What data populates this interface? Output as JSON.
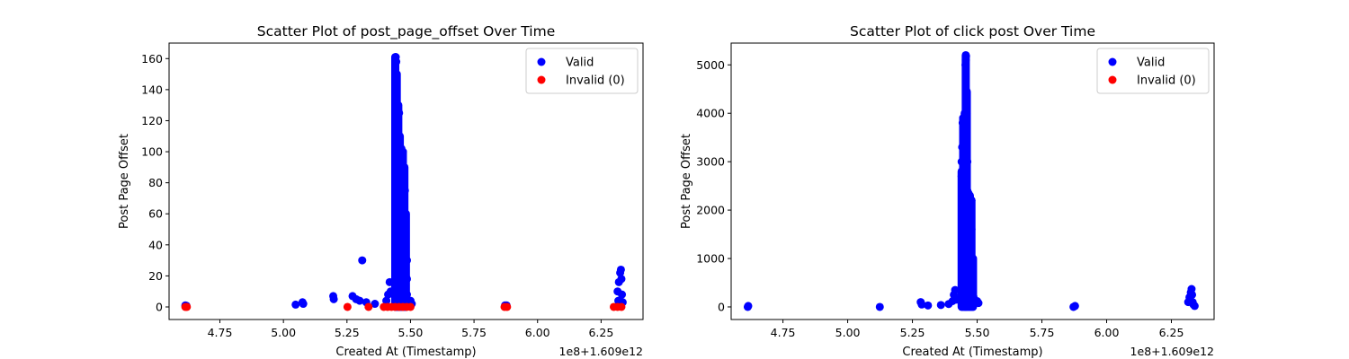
{
  "colors": {
    "valid": "#0000ff",
    "invalid": "#ff0000"
  },
  "chart_data": [
    {
      "type": "scatter",
      "title": "Scatter Plot of post_page_offset Over Time",
      "xlabel": "Created At (Timestamp)",
      "ylabel": "Post Page Offset",
      "x_offset_text": "1e8+1.609e12",
      "xlim": [
        4.55,
        6.415
      ],
      "ylim": [
        -8.1,
        170
      ],
      "xticks": [
        4.75,
        5.0,
        5.25,
        5.5,
        5.75,
        6.0,
        6.25
      ],
      "xtick_labels": [
        "4.75",
        "5.00",
        "5.25",
        "5.50",
        "5.75",
        "6.00",
        "6.25"
      ],
      "yticks": [
        0,
        20,
        40,
        60,
        80,
        100,
        120,
        140,
        160
      ],
      "ytick_labels": [
        "0",
        "20",
        "40",
        "60",
        "80",
        "100",
        "120",
        "140",
        "160"
      ],
      "legend_position": "top-right",
      "grid": false,
      "series": [
        {
          "name": "Valid",
          "color": "#0000ff",
          "points": [
            [
              4.614,
              1
            ],
            [
              4.616,
              0.5
            ],
            [
              4.618,
              0.8
            ],
            [
              5.048,
              1.5
            ],
            [
              5.075,
              3
            ],
            [
              5.078,
              2
            ],
            [
              5.196,
              7
            ],
            [
              5.198,
              5
            ],
            [
              5.272,
              7
            ],
            [
              5.286,
              5
            ],
            [
              5.3,
              4
            ],
            [
              5.31,
              30
            ],
            [
              5.326,
              3
            ],
            [
              5.36,
              2
            ],
            [
              5.405,
              4
            ],
            [
              5.412,
              8
            ],
            [
              5.418,
              16
            ],
            [
              5.422,
              10
            ],
            [
              5.44,
              160
            ],
            [
              5.442,
              161
            ],
            [
              5.444,
              158
            ],
            [
              5.442,
              150
            ],
            [
              5.442,
              140
            ],
            [
              5.442,
              130
            ],
            [
              5.442,
              120
            ],
            [
              5.442,
              110
            ],
            [
              5.442,
              100
            ],
            [
              5.442,
              90
            ],
            [
              5.442,
              80
            ],
            [
              5.442,
              70
            ],
            [
              5.442,
              60
            ],
            [
              5.442,
              50
            ],
            [
              5.442,
              40
            ],
            [
              5.442,
              30
            ],
            [
              5.442,
              20
            ],
            [
              5.442,
              10
            ],
            [
              5.442,
              2
            ],
            [
              5.455,
              125
            ],
            [
              5.455,
              110
            ],
            [
              5.455,
              95
            ],
            [
              5.455,
              80
            ],
            [
              5.455,
              65
            ],
            [
              5.455,
              50
            ],
            [
              5.455,
              35
            ],
            [
              5.455,
              20
            ],
            [
              5.455,
              5
            ],
            [
              5.47,
              100
            ],
            [
              5.47,
              90
            ],
            [
              5.47,
              80
            ],
            [
              5.47,
              70
            ],
            [
              5.47,
              60
            ],
            [
              5.47,
              50
            ],
            [
              5.47,
              40
            ],
            [
              5.47,
              30
            ],
            [
              5.47,
              20
            ],
            [
              5.47,
              10
            ],
            [
              5.478,
              75
            ],
            [
              5.478,
              60
            ],
            [
              5.478,
              45
            ],
            [
              5.478,
              30
            ],
            [
              5.478,
              15
            ],
            [
              5.486,
              30
            ],
            [
              5.486,
              18
            ],
            [
              5.486,
              8
            ],
            [
              5.5,
              4
            ],
            [
              5.505,
              2
            ],
            [
              5.872,
              1
            ],
            [
              5.875,
              0.5
            ],
            [
              5.878,
              1
            ],
            [
              6.315,
              10
            ],
            [
              6.32,
              16
            ],
            [
              6.325,
              22
            ],
            [
              6.328,
              24
            ],
            [
              6.33,
              18
            ],
            [
              6.332,
              8
            ],
            [
              6.335,
              3
            ],
            [
              6.318,
              4
            ]
          ]
        },
        {
          "name": "Invalid (0)",
          "color": "#ff0000",
          "points": [
            [
              4.614,
              0
            ],
            [
              4.62,
              0
            ],
            [
              5.252,
              0
            ],
            [
              5.335,
              0
            ],
            [
              5.395,
              0
            ],
            [
              5.41,
              0
            ],
            [
              5.425,
              0
            ],
            [
              5.44,
              0
            ],
            [
              5.455,
              0
            ],
            [
              5.47,
              0
            ],
            [
              5.485,
              0
            ],
            [
              5.5,
              0
            ],
            [
              5.87,
              0
            ],
            [
              5.88,
              0
            ],
            [
              6.3,
              0
            ],
            [
              6.315,
              0
            ],
            [
              6.33,
              0
            ]
          ]
        }
      ]
    },
    {
      "type": "scatter",
      "title": "Scatter Plot of click post Over Time",
      "xlabel": "Created At (Timestamp)",
      "ylabel": "Post Page Offset",
      "x_offset_text": "1e8+1.609e12",
      "xlim": [
        4.55,
        6.415
      ],
      "ylim": [
        -260,
        5450
      ],
      "xticks": [
        4.75,
        5.0,
        5.25,
        5.5,
        5.75,
        6.0,
        6.25
      ],
      "xtick_labels": [
        "4.75",
        "5.00",
        "5.25",
        "5.50",
        "5.75",
        "6.00",
        "6.25"
      ],
      "yticks": [
        0,
        1000,
        2000,
        3000,
        4000,
        5000
      ],
      "ytick_labels": [
        "0",
        "1000",
        "2000",
        "3000",
        "4000",
        "5000"
      ],
      "legend_position": "top-right",
      "grid": false,
      "series": [
        {
          "name": "Valid",
          "color": "#0000ff",
          "points": [
            [
              4.614,
              0
            ],
            [
              4.616,
              20
            ],
            [
              5.124,
              0
            ],
            [
              5.282,
              100
            ],
            [
              5.286,
              50
            ],
            [
              5.31,
              30
            ],
            [
              5.36,
              40
            ],
            [
              5.39,
              60
            ],
            [
              5.405,
              120
            ],
            [
              5.41,
              250
            ],
            [
              5.415,
              350
            ],
            [
              5.42,
              150
            ],
            [
              5.44,
              2700
            ],
            [
              5.44,
              3000
            ],
            [
              5.442,
              3300
            ],
            [
              5.444,
              3800
            ],
            [
              5.446,
              3900
            ],
            [
              5.448,
              2500
            ],
            [
              5.448,
              2000
            ],
            [
              5.448,
              1500
            ],
            [
              5.448,
              1000
            ],
            [
              5.448,
              500
            ],
            [
              5.448,
              100
            ],
            [
              5.455,
              5000
            ],
            [
              5.456,
              5100
            ],
            [
              5.457,
              5180
            ],
            [
              5.452,
              2200
            ],
            [
              5.452,
              1800
            ],
            [
              5.452,
              1200
            ],
            [
              5.452,
              600
            ],
            [
              5.46,
              4000
            ],
            [
              5.46,
              4200
            ],
            [
              5.46,
              4420
            ],
            [
              5.46,
              3600
            ],
            [
              5.462,
              3000
            ],
            [
              5.462,
              2400
            ],
            [
              5.462,
              1700
            ],
            [
              5.462,
              900
            ],
            [
              5.462,
              200
            ],
            [
              5.47,
              2300
            ],
            [
              5.47,
              1800
            ],
            [
              5.47,
              1300
            ],
            [
              5.47,
              800
            ],
            [
              5.47,
              300
            ],
            [
              5.478,
              2200
            ],
            [
              5.478,
              1600
            ],
            [
              5.478,
              1000
            ],
            [
              5.478,
              400
            ],
            [
              5.486,
              200
            ],
            [
              5.5,
              120
            ],
            [
              5.505,
              80
            ],
            [
              5.872,
              0
            ],
            [
              5.878,
              20
            ],
            [
              6.315,
              100
            ],
            [
              6.32,
              200
            ],
            [
              6.325,
              300
            ],
            [
              6.328,
              370
            ],
            [
              6.33,
              250
            ],
            [
              6.332,
              100
            ],
            [
              6.335,
              50
            ],
            [
              6.34,
              20
            ]
          ]
        },
        {
          "name": "Invalid (0)",
          "color": "#ff0000",
          "points": []
        }
      ]
    }
  ]
}
